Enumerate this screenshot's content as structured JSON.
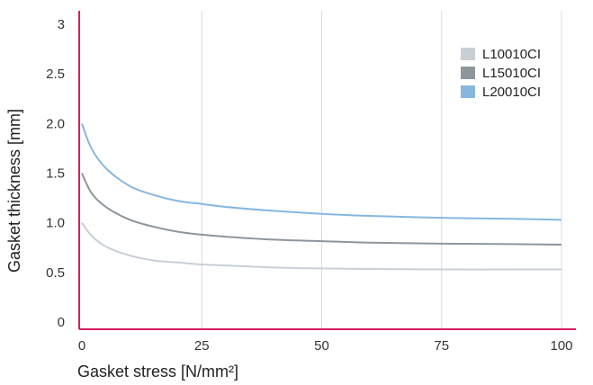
{
  "chart_data": {
    "type": "line",
    "xlabel": "Gasket stress [N/mm²]",
    "ylabel": "Gasket thickness [mm]",
    "xlim": [
      0,
      100
    ],
    "ylim": [
      0,
      3
    ],
    "xticks": [
      0,
      25,
      50,
      75,
      100
    ],
    "xtick_labels": [
      "0",
      "25",
      "50",
      "75",
      "100"
    ],
    "yticks": [
      0,
      0.5,
      1.0,
      1.5,
      2.0,
      2.5,
      3
    ],
    "ytick_labels": [
      "0",
      "0.5",
      "1.0",
      "1.5",
      "2.0",
      "2.5",
      "3"
    ],
    "grid": "vertical",
    "legend_position": "top-right",
    "axis_color": "#d81e5b",
    "grid_color": "#dcdcdc",
    "series": [
      {
        "name": "L10010CI",
        "color": "#c9cfd5",
        "x": [
          0,
          2,
          5,
          10,
          15,
          20,
          25,
          30,
          40,
          50,
          60,
          75,
          90,
          100
        ],
        "y": [
          1.0,
          0.87,
          0.76,
          0.67,
          0.62,
          0.6,
          0.58,
          0.57,
          0.55,
          0.54,
          0.535,
          0.53,
          0.53,
          0.53
        ]
      },
      {
        "name": "L15010CI",
        "color": "#8e969d",
        "x": [
          0,
          2,
          5,
          10,
          15,
          20,
          25,
          30,
          40,
          50,
          60,
          75,
          90,
          100
        ],
        "y": [
          1.5,
          1.3,
          1.16,
          1.03,
          0.96,
          0.91,
          0.88,
          0.86,
          0.83,
          0.815,
          0.8,
          0.79,
          0.785,
          0.78
        ]
      },
      {
        "name": "L20010CI",
        "color": "#86b7df",
        "x": [
          0,
          2,
          5,
          10,
          15,
          20,
          25,
          30,
          40,
          50,
          60,
          75,
          90,
          100
        ],
        "y": [
          2.0,
          1.75,
          1.55,
          1.37,
          1.28,
          1.22,
          1.19,
          1.16,
          1.12,
          1.09,
          1.07,
          1.05,
          1.04,
          1.03
        ]
      }
    ]
  }
}
